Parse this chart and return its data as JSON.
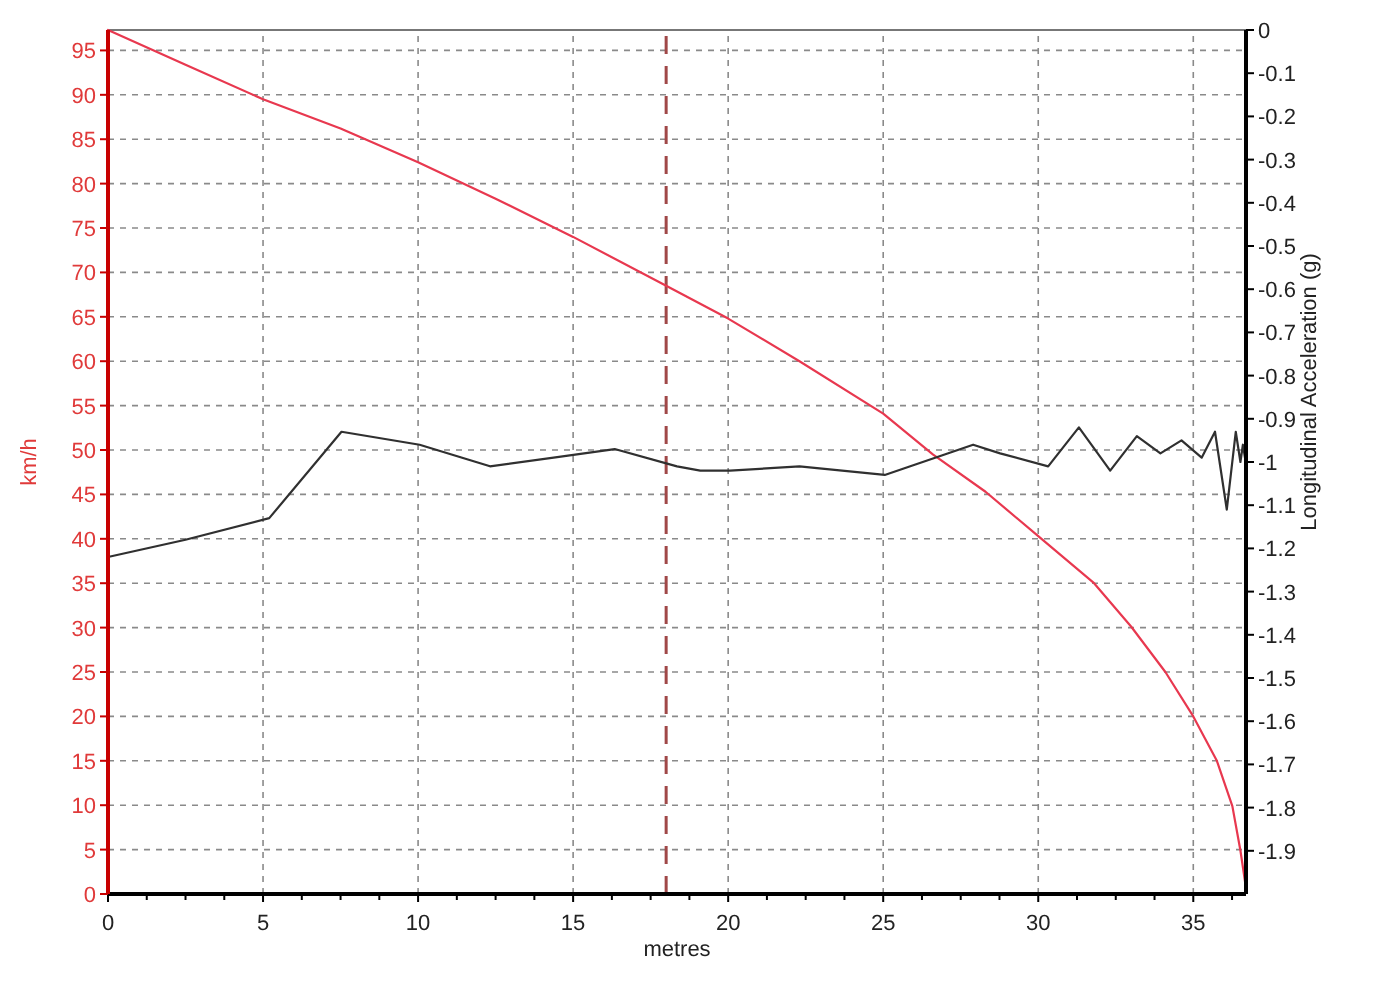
{
  "chart_data": {
    "type": "line",
    "xlabel": "metres",
    "ylabel": "km/h",
    "y2label": "Longitudinal Acceleration (g)",
    "xlim": [
      0,
      36.7
    ],
    "xticks": [
      0,
      {
        "value": 1.25,
        "label": null
      },
      {
        "value": 2.5,
        "label": null
      },
      {
        "value": 3.75,
        "label": null
      },
      5,
      {
        "value": 6.25,
        "label": null
      },
      {
        "value": 7.5,
        "label": null
      },
      {
        "value": 8.75,
        "label": null
      },
      10,
      {
        "value": 11.25,
        "label": null
      },
      {
        "value": 12.5,
        "label": null
      },
      {
        "value": 13.75,
        "label": null
      },
      15,
      {
        "value": 16.25,
        "label": null
      },
      {
        "value": 17.5,
        "label": null
      },
      {
        "value": 18.75,
        "label": null
      },
      20,
      {
        "value": 21.25,
        "label": null
      },
      {
        "value": 22.5,
        "label": null
      },
      {
        "value": 23.75,
        "label": null
      },
      25,
      {
        "value": 26.25,
        "label": null
      },
      {
        "value": 27.5,
        "label": null
      },
      {
        "value": 28.75,
        "label": null
      },
      30,
      {
        "value": 31.25,
        "label": null
      },
      {
        "value": 32.5,
        "label": null
      },
      {
        "value": 33.75,
        "label": null
      },
      35,
      {
        "value": 36.25,
        "label": null
      }
    ],
    "ylim": [
      0,
      97.3
    ],
    "yticks": [
      0,
      5,
      10,
      15,
      20,
      25,
      30,
      35,
      40,
      45,
      50,
      55,
      60,
      65,
      70,
      75,
      80,
      85,
      90,
      95
    ],
    "y2lim": [
      -2,
      0
    ],
    "y2ticks": [
      0,
      -0.1,
      -0.2,
      -0.3,
      -0.4,
      -0.5,
      -0.6,
      -0.7,
      -0.8,
      -0.9,
      -1,
      -1.1,
      -1.2,
      -1.3,
      -1.4,
      -1.5,
      -1.6,
      -1.7,
      -1.8,
      -1.9
    ],
    "grid": true,
    "series": [
      {
        "color": "#e8384f",
        "x": [
          0,
          2.5,
          5,
          7.5,
          10,
          12.5,
          15,
          18,
          20,
          22.3,
          25,
          26.6,
          28.3,
          30,
          31.8,
          33,
          34.1,
          35,
          35.76,
          36.26,
          36.52,
          36.69
        ],
        "values": [
          97.3,
          93.4,
          89.5,
          86.2,
          82.4,
          78.3,
          74.0,
          68.5,
          64.8,
          60.0,
          54.1,
          49.5,
          45.3,
          40.3,
          35.0,
          30.1,
          25.0,
          20.0,
          15.0,
          9.9,
          4.9,
          0.9
        ]
      },
      {
        "color": "#303030",
        "axis": "y2",
        "x": [
          0,
          2.5,
          5.2,
          7.53,
          10.05,
          12.32,
          14.37,
          16.34,
          18.35,
          19.1,
          20.06,
          22.3,
          25.05,
          27.9,
          28.77,
          30.32,
          31.31,
          32.32,
          33.18,
          33.94,
          34.62,
          35.27,
          35.7,
          36.08,
          36.37,
          36.52,
          36.6,
          36.69
        ],
        "values": [
          -1.22,
          -1.18,
          -1.13,
          -0.93,
          -0.96,
          -1.01,
          -0.99,
          -0.97,
          -1.01,
          -1.02,
          -1.02,
          -1.01,
          -1.03,
          -0.96,
          -0.98,
          -1.01,
          -0.92,
          -1.02,
          -0.94,
          -0.98,
          -0.95,
          -0.99,
          -0.93,
          -1.11,
          -0.93,
          -1.0,
          -0.96,
          -1.0
        ]
      }
    ],
    "ref_lines": [
      {
        "axis": "x",
        "value": 18,
        "color": "#a04848",
        "line_style": "dashed"
      }
    ]
  }
}
